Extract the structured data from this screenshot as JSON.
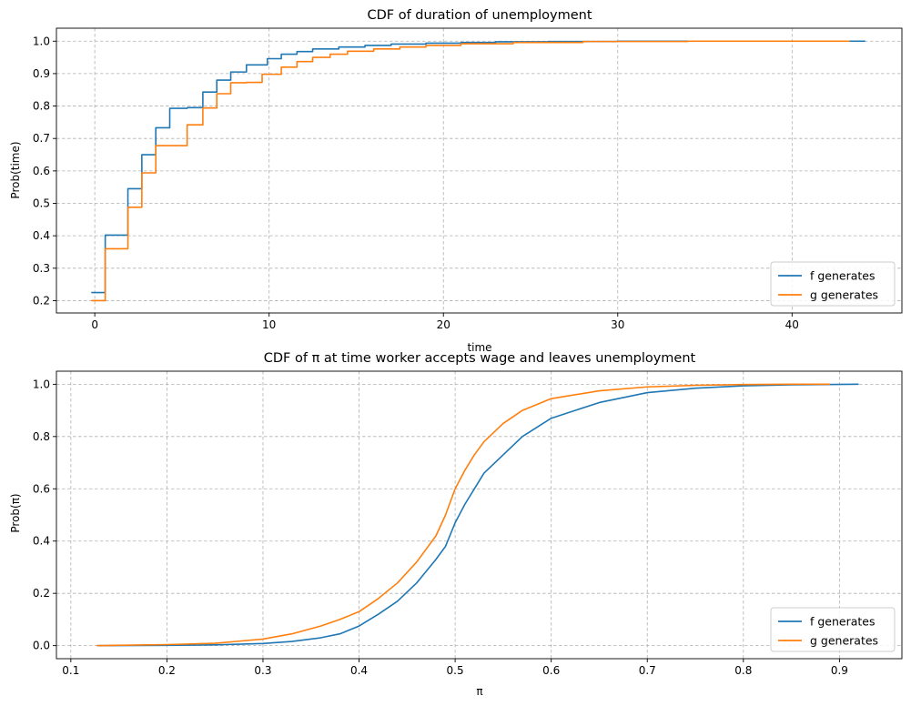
{
  "colors": {
    "series_f": "#1f77b4",
    "series_g": "#ff7f0e"
  },
  "chart_data": [
    {
      "type": "line",
      "title": "CDF of duration of unemployment",
      "xlabel": "time",
      "ylabel": "Prob(time)",
      "xlim": [
        -2.2,
        46.3
      ],
      "ylim": [
        0.162,
        1.04
      ],
      "xticks": [
        0,
        10,
        20,
        30,
        40
      ],
      "yticks": [
        0.2,
        0.3,
        0.4,
        0.5,
        0.6,
        0.7,
        0.8,
        0.9,
        1.0
      ],
      "xtick_labels": [
        "0",
        "10",
        "20",
        "30",
        "40"
      ],
      "ytick_labels": [
        "0.2",
        "0.3",
        "0.4",
        "0.5",
        "0.6",
        "0.7",
        "0.8",
        "0.9",
        "1.0"
      ],
      "grid": true,
      "legend": "lower-right",
      "series": [
        {
          "name": "f generates",
          "step": true,
          "x": [
            -0.2,
            0.2,
            0.6,
            1.5,
            1.9,
            2.7,
            3.5,
            4.3,
            5.3,
            6.2,
            7.0,
            7.8,
            8.7,
            9.9,
            10.7,
            11.6,
            12.5,
            14.0,
            15.5,
            17.0,
            19.0,
            21.0,
            23.0,
            26.0,
            30.0,
            36.0,
            44.2
          ],
          "y": [
            0.225,
            0.225,
            0.402,
            0.402,
            0.545,
            0.65,
            0.733,
            0.793,
            0.795,
            0.843,
            0.88,
            0.905,
            0.927,
            0.946,
            0.96,
            0.968,
            0.976,
            0.982,
            0.987,
            0.991,
            0.994,
            0.996,
            0.998,
            0.999,
            1.0,
            1.0,
            1.0
          ]
        },
        {
          "name": "g generates",
          "step": true,
          "x": [
            -0.2,
            0.2,
            0.6,
            1.5,
            1.9,
            2.7,
            3.5,
            4.3,
            5.3,
            6.2,
            7.0,
            7.8,
            8.7,
            9.6,
            10.7,
            11.6,
            12.5,
            13.5,
            14.5,
            16.0,
            17.5,
            19.0,
            21.0,
            24.0,
            28.0,
            34.0,
            43.3
          ],
          "y": [
            0.2,
            0.2,
            0.36,
            0.36,
            0.488,
            0.594,
            0.678,
            0.678,
            0.742,
            0.794,
            0.838,
            0.872,
            0.873,
            0.898,
            0.92,
            0.937,
            0.95,
            0.96,
            0.969,
            0.976,
            0.982,
            0.987,
            0.992,
            0.996,
            0.999,
            1.0,
            1.0
          ]
        }
      ]
    },
    {
      "type": "line",
      "title": "CDF of π at time worker accepts wage and leaves unemployment",
      "xlabel": "π",
      "ylabel": "Prob(π)",
      "xlim": [
        0.085,
        0.965
      ],
      "ylim": [
        -0.05,
        1.05
      ],
      "xticks": [
        0.1,
        0.2,
        0.3,
        0.4,
        0.5,
        0.6,
        0.7,
        0.8,
        0.9
      ],
      "yticks": [
        0.0,
        0.2,
        0.4,
        0.6,
        0.8,
        1.0
      ],
      "xtick_labels": [
        "0.1",
        "0.2",
        "0.3",
        "0.4",
        "0.5",
        "0.6",
        "0.7",
        "0.8",
        "0.9"
      ],
      "ytick_labels": [
        "0.0",
        "0.2",
        "0.4",
        "0.6",
        "0.8",
        "1.0"
      ],
      "grid": true,
      "legend": "lower-right",
      "series": [
        {
          "name": "f generates",
          "step": false,
          "x": [
            0.127,
            0.2,
            0.25,
            0.3,
            0.33,
            0.36,
            0.38,
            0.4,
            0.42,
            0.44,
            0.46,
            0.48,
            0.49,
            0.5,
            0.51,
            0.52,
            0.53,
            0.55,
            0.57,
            0.6,
            0.65,
            0.7,
            0.75,
            0.8,
            0.85,
            0.92
          ],
          "y": [
            0.0,
            0.001,
            0.003,
            0.008,
            0.016,
            0.03,
            0.045,
            0.075,
            0.12,
            0.17,
            0.24,
            0.33,
            0.38,
            0.47,
            0.54,
            0.6,
            0.66,
            0.73,
            0.8,
            0.87,
            0.93,
            0.968,
            0.985,
            0.994,
            0.998,
            1.0
          ]
        },
        {
          "name": "g generates",
          "step": false,
          "x": [
            0.127,
            0.2,
            0.25,
            0.3,
            0.33,
            0.36,
            0.38,
            0.4,
            0.42,
            0.44,
            0.46,
            0.48,
            0.49,
            0.5,
            0.51,
            0.52,
            0.53,
            0.55,
            0.57,
            0.6,
            0.65,
            0.7,
            0.75,
            0.8,
            0.85,
            0.89
          ],
          "y": [
            0.0,
            0.004,
            0.009,
            0.025,
            0.045,
            0.075,
            0.1,
            0.13,
            0.18,
            0.24,
            0.32,
            0.42,
            0.5,
            0.6,
            0.67,
            0.73,
            0.78,
            0.85,
            0.9,
            0.945,
            0.975,
            0.99,
            0.996,
            0.999,
            1.0,
            1.0
          ]
        }
      ]
    }
  ]
}
